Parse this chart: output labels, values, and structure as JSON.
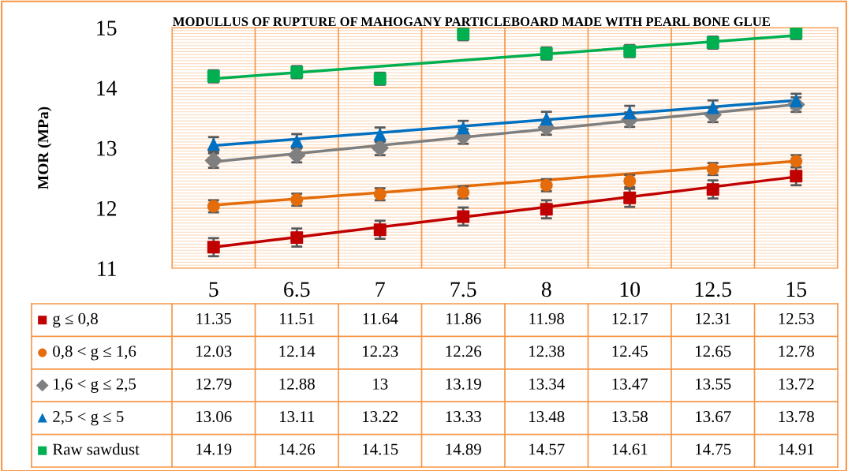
{
  "chart_data": {
    "type": "scatter",
    "title": "MODULLUS OF RUPTURE OF MAHOGANY PARTICLEBOARD MADE WITH PEARL BONE GLUE",
    "ylabel": "MOR (MPa)",
    "categories": [
      "5",
      "6.5",
      "7",
      "7.5",
      "8",
      "10",
      "12.5",
      "15"
    ],
    "ylim": [
      11,
      15
    ],
    "yticks": [
      11,
      12,
      13,
      14,
      15
    ],
    "grid": true,
    "legend": "bottom",
    "data_labels": true,
    "series": [
      {
        "name": "g ≤ 0,8",
        "marker": "square",
        "color": "#c00000",
        "values": [
          11.35,
          11.51,
          11.64,
          11.86,
          11.98,
          12.17,
          12.31,
          12.53
        ],
        "errors": [
          0.15,
          0.15,
          0.15,
          0.15,
          0.15,
          0.15,
          0.15,
          0.15
        ]
      },
      {
        "name": "0,8 < g ≤ 1,6",
        "marker": "circle",
        "color": "#e46c0a",
        "values": [
          12.03,
          12.14,
          12.23,
          12.26,
          12.38,
          12.45,
          12.65,
          12.78
        ],
        "errors": [
          0.1,
          0.1,
          0.1,
          0.1,
          0.1,
          0.1,
          0.1,
          0.1
        ]
      },
      {
        "name": "1,6 < g ≤ 2,5",
        "marker": "diamond",
        "color": "#7f7f7f",
        "values": [
          12.79,
          12.88,
          13,
          13.19,
          13.34,
          13.47,
          13.55,
          13.72
        ],
        "errors": [
          0.12,
          0.12,
          0.12,
          0.12,
          0.12,
          0.12,
          0.12,
          0.12
        ]
      },
      {
        "name": "2,5 < g ≤ 5",
        "marker": "triangle",
        "color": "#0070c0",
        "values": [
          13.06,
          13.11,
          13.22,
          13.33,
          13.48,
          13.58,
          13.67,
          13.78
        ],
        "errors": [
          0.12,
          0.12,
          0.12,
          0.12,
          0.12,
          0.12,
          0.12,
          0.12
        ]
      },
      {
        "name": "Raw sawdust",
        "marker": "square",
        "color": "#00b050",
        "values": [
          14.19,
          14.26,
          14.15,
          14.89,
          14.57,
          14.61,
          14.75,
          14.91
        ],
        "errors": [
          0.1,
          0.1,
          0.1,
          0.1,
          0.1,
          0.1,
          0.1,
          0.1
        ]
      },
      {
        "type": "line",
        "color": "#c00000",
        "x": [
          "5",
          "15"
        ],
        "values": [
          11.35,
          12.52
        ],
        "value_labels": [
          null,
          null
        ]
      },
      {
        "type": "line",
        "color": "#e46c0a",
        "x": [
          "5",
          "15"
        ],
        "values": [
          12.05,
          12.78
        ],
        "value_labels": [
          null,
          null
        ]
      },
      {
        "type": "line",
        "color": "#7f7f7f",
        "x": [
          "5",
          "15"
        ],
        "values": [
          12.77,
          13.72
        ],
        "value_labels": [
          null,
          null
        ]
      },
      {
        "type": "line",
        "color": "#0070c0",
        "x": [
          "5",
          "15"
        ],
        "values": [
          13.04,
          13.79
        ],
        "value_labels": [
          null,
          null
        ]
      },
      {
        "type": "line",
        "color": "#00b050",
        "x": [
          "5",
          "15"
        ],
        "values": [
          14.15,
          14.87
        ],
        "value_labels": [
          null,
          null
        ]
      }
    ]
  }
}
